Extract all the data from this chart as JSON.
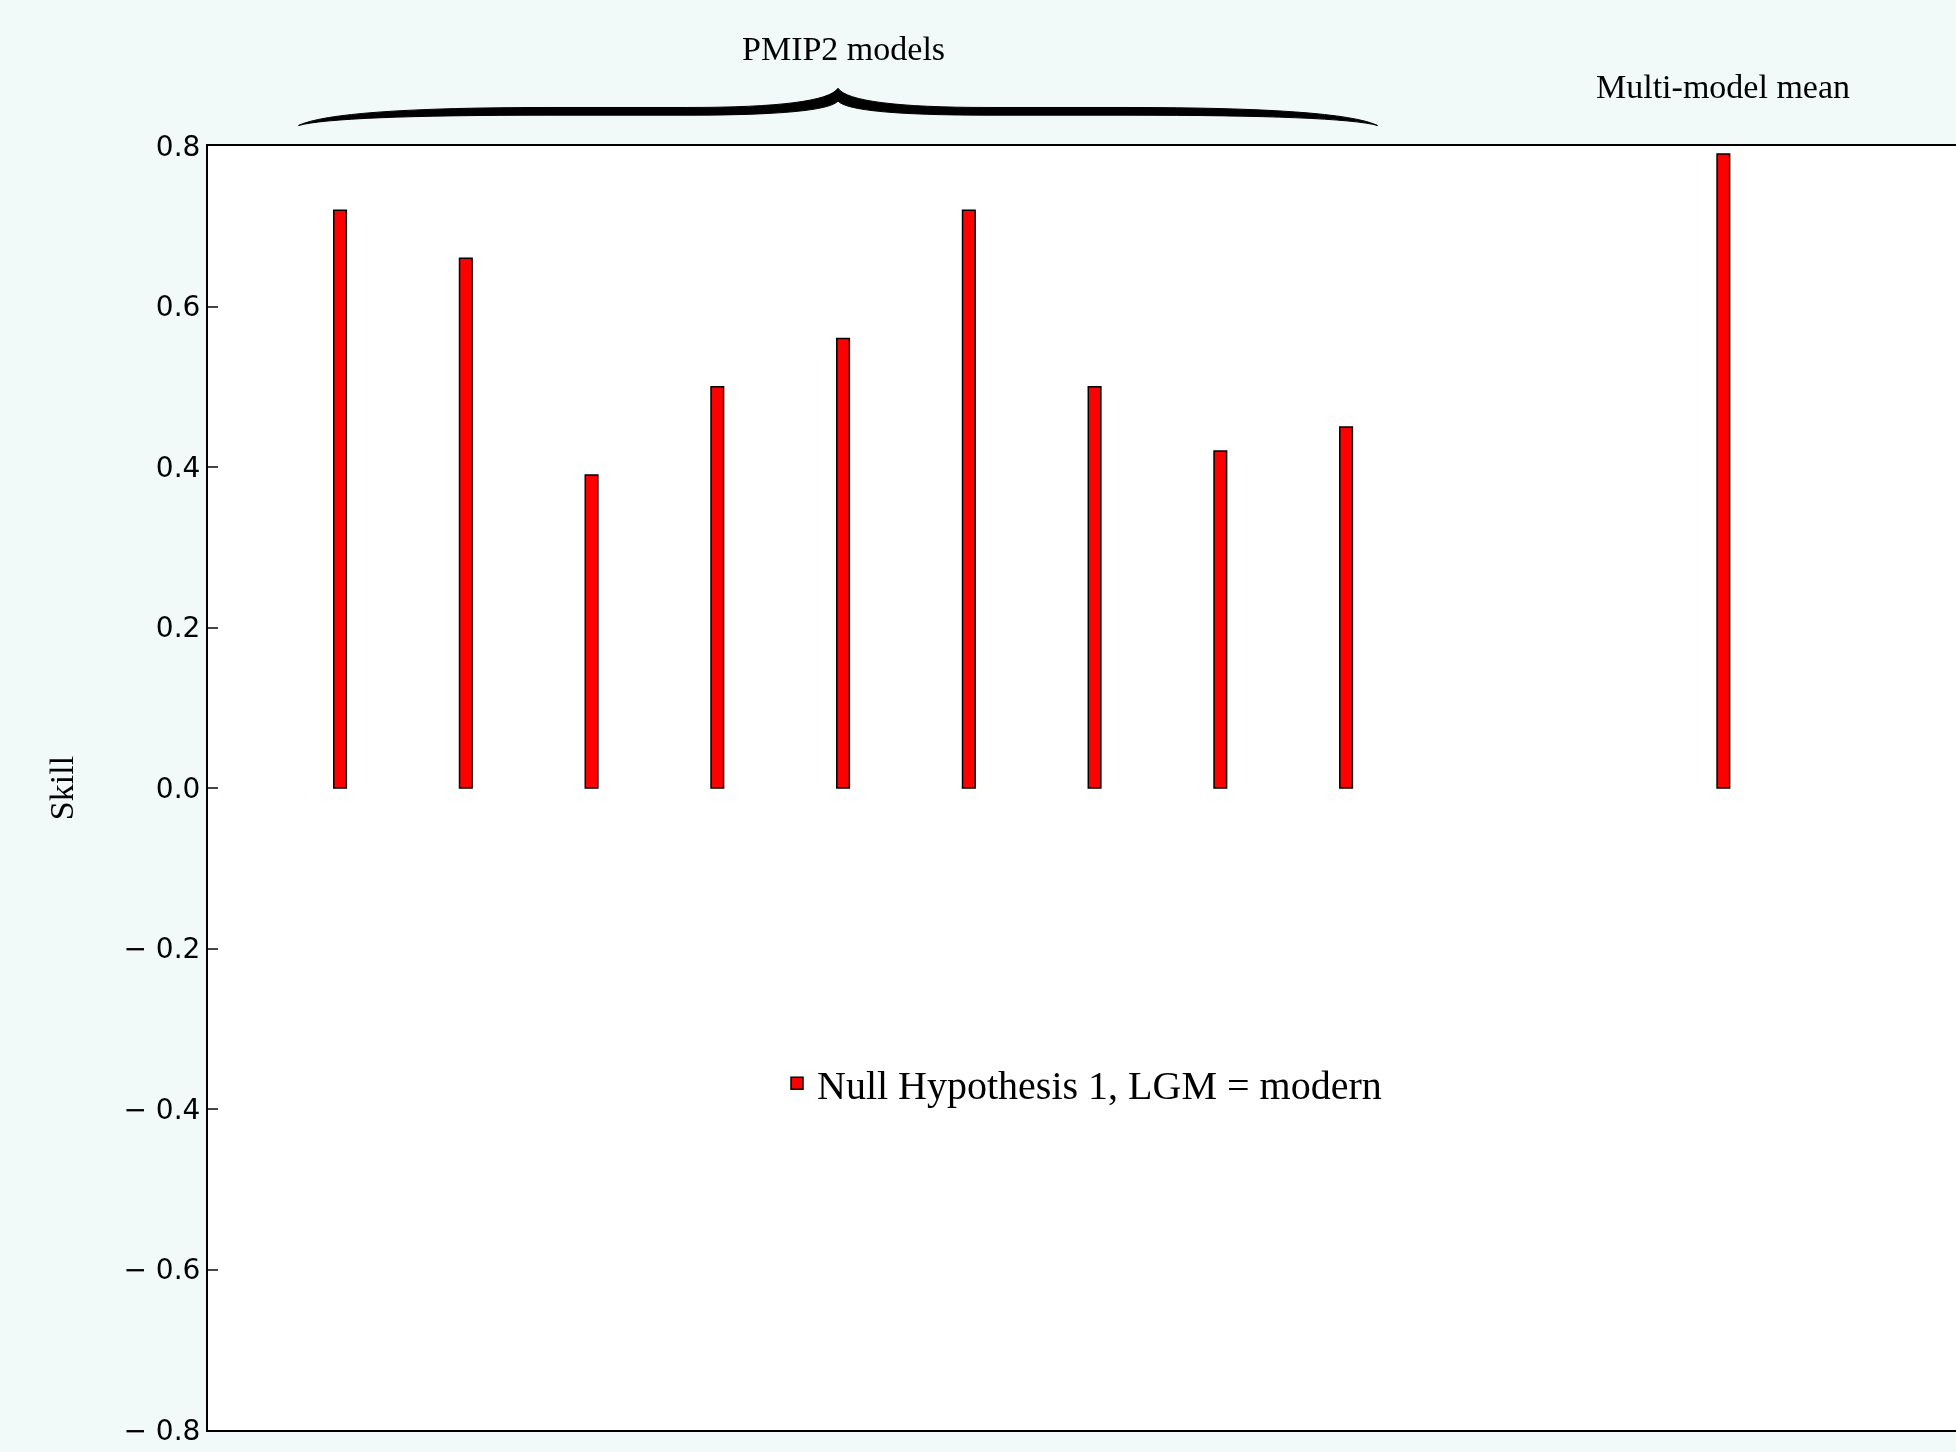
{
  "chart_data": {
    "type": "bar",
    "ylabel": "Skill",
    "annotations": [
      "PMIP2 models",
      "Multi-model mean"
    ],
    "categories": [
      null,
      null,
      null,
      null,
      null,
      null,
      null,
      null,
      null,
      null,
      null,
      null,
      null
    ],
    "series": [
      {
        "name": "Null Hypothesis 1, LGM = modern",
        "color": "#ff0000",
        "values": [
          0.72,
          0.66,
          0.39,
          0.5,
          0.56,
          0.72,
          0.5,
          0.42,
          0.45,
          null,
          null,
          0.79,
          null
        ]
      }
    ],
    "ylim": [
      -0.8,
      0.8
    ],
    "yticks": [
      {
        "value": -0.8,
        "label": "− 0.8"
      },
      {
        "value": -0.6,
        "label": "− 0.6"
      },
      {
        "value": -0.4,
        "label": "− 0.4"
      },
      {
        "value": -0.2,
        "label": "− 0.2"
      },
      {
        "value": 0,
        "label": "0.0"
      },
      {
        "value": 0.2,
        "label": "0.2"
      },
      {
        "value": 0.4,
        "label": "0.4"
      },
      {
        "value": 0.6,
        "label": "0.6"
      },
      {
        "value": 0.8,
        "label": "0.8"
      }
    ],
    "tick_labels": "y",
    "grid": false,
    "legend": "center"
  }
}
